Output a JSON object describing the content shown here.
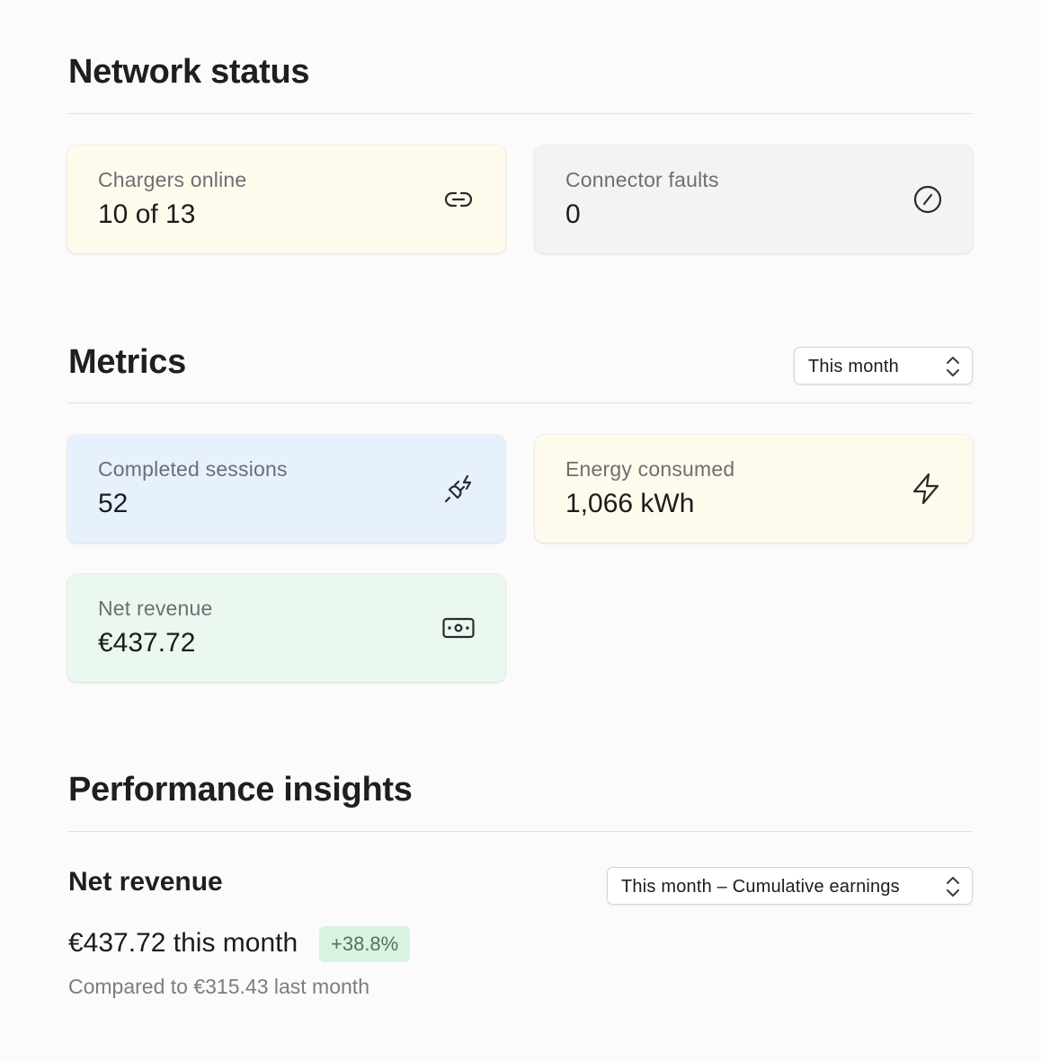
{
  "network": {
    "title": "Network status",
    "cards": [
      {
        "label": "Chargers online",
        "value": "10 of 13",
        "icon": "link-icon"
      },
      {
        "label": "Connector faults",
        "value": "0",
        "icon": "slash-circle-icon"
      }
    ]
  },
  "metrics": {
    "title": "Metrics",
    "period_select": "This month",
    "cards": [
      {
        "label": "Completed sessions",
        "value": "52",
        "icon": "plug-icon"
      },
      {
        "label": "Energy consumed",
        "value": "1,066 kWh",
        "icon": "lightning-icon"
      },
      {
        "label": "Net revenue",
        "value": "€437.72",
        "icon": "banknote-icon"
      }
    ]
  },
  "insights": {
    "title": "Performance insights",
    "subtitle": "Net revenue",
    "period_select": "This month – Cumulative earnings",
    "headline": "€437.72 this month",
    "change_badge": "+38.8%",
    "comparison": "Compared to €315.43 last month"
  }
}
